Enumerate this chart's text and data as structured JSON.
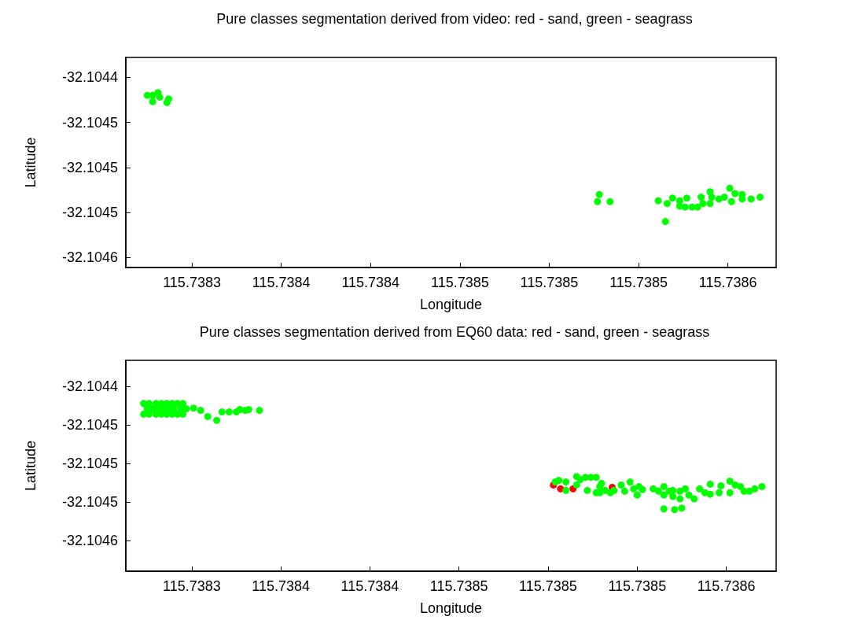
{
  "chart_data": [
    {
      "type": "scatter",
      "title": "Pure classes segmentation derived from video: red - sand, green - seagrass",
      "xlabel": "Longitude",
      "ylabel": "Latitude",
      "xlim": [
        115.738263,
        115.738627
      ],
      "ylim": [
        -32.104611,
        -32.104378
      ],
      "xticks": [
        {
          "value": 115.7383,
          "label": "115.7383"
        },
        {
          "value": 115.73835,
          "label": "115.7384"
        },
        {
          "value": 115.7384,
          "label": "115.7384"
        },
        {
          "value": 115.73845,
          "label": "115.7385"
        },
        {
          "value": 115.7385,
          "label": "115.7385"
        },
        {
          "value": 115.73855,
          "label": "115.7385"
        },
        {
          "value": 115.7386,
          "label": "115.7386"
        }
      ],
      "yticks": [
        {
          "value": -32.1044,
          "label": "-32.1044"
        },
        {
          "value": -32.10445,
          "label": "-32.1045"
        },
        {
          "value": -32.1045,
          "label": "-32.1045"
        },
        {
          "value": -32.10455,
          "label": "-32.1045"
        },
        {
          "value": -32.1046,
          "label": "-32.1046"
        }
      ],
      "grid": false,
      "marker": "circle",
      "series": [
        {
          "color": "#00ff00",
          "x": [
            115.738275,
            115.738278,
            115.738281,
            115.738287,
            115.738286,
            115.738278,
            115.738282,
            115.738528,
            115.738527,
            115.738534,
            115.738561,
            115.738566,
            115.738565,
            115.738569,
            115.738573,
            115.738573,
            115.738577,
            115.738576,
            115.73858,
            115.738583,
            115.738585,
            115.738586,
            115.73859,
            115.738591,
            115.73859,
            115.738595,
            115.738598,
            115.738601,
            115.738602,
            115.738604,
            115.738608,
            115.738608,
            115.738613,
            115.738618
          ],
          "values": [
            -32.10442,
            -32.10442,
            -32.104417,
            -32.104424,
            -32.104428,
            -32.104427,
            -32.104422,
            -32.10453,
            -32.104538,
            -32.104538,
            -32.104537,
            -32.10454,
            -32.10456,
            -32.104534,
            -32.104537,
            -32.104543,
            -32.104534,
            -32.104544,
            -32.104544,
            -32.104544,
            -32.104533,
            -32.10454,
            -32.104527,
            -32.104533,
            -32.10454,
            -32.104535,
            -32.104533,
            -32.104523,
            -32.104538,
            -32.104529,
            -32.10453,
            -32.104535,
            -32.104535,
            -32.104533
          ]
        }
      ]
    },
    {
      "type": "scatter",
      "title": "Pure classes segmentation derived from EQ60 data: red - sand, green - seagrass",
      "xlabel": "Longitude",
      "ylabel": "Latitude",
      "xlim": [
        115.738263,
        115.738628
      ],
      "ylim": [
        -32.10464,
        -32.104366
      ],
      "xticks": [
        {
          "value": 115.7383,
          "label": "115.7383"
        },
        {
          "value": 115.73835,
          "label": "115.7384"
        },
        {
          "value": 115.7384,
          "label": "115.7384"
        },
        {
          "value": 115.73845,
          "label": "115.7385"
        },
        {
          "value": 115.7385,
          "label": "115.7385"
        },
        {
          "value": 115.73855,
          "label": "115.7385"
        },
        {
          "value": 115.7386,
          "label": "115.7386"
        }
      ],
      "yticks": [
        {
          "value": -32.1044,
          "label": "-32.1044"
        },
        {
          "value": -32.10445,
          "label": "-32.1045"
        },
        {
          "value": -32.1045,
          "label": "-32.1045"
        },
        {
          "value": -32.10455,
          "label": "-32.1045"
        },
        {
          "value": -32.1046,
          "label": "-32.1046"
        }
      ],
      "grid": false,
      "marker": "circle",
      "series": [
        {
          "color": "#ff0000",
          "x": [
            115.738503,
            115.738507,
            115.738514,
            115.738536
          ],
          "values": [
            -32.104528,
            -32.104533,
            -32.104533,
            -32.104531
          ]
        },
        {
          "color": "#00ff00",
          "x": [
            115.738273,
            115.738276,
            115.73828,
            115.738283,
            115.738286,
            115.738289,
            115.738292,
            115.738295,
            115.738275,
            115.738278,
            115.738281,
            115.738284,
            115.738287,
            115.73829,
            115.738294,
            115.738297,
            115.738273,
            115.738276,
            115.73828,
            115.738283,
            115.738286,
            115.738289,
            115.738292,
            115.738295,
            115.738301,
            115.738305,
            115.738309,
            115.738314,
            115.738317,
            115.738321,
            115.738325,
            115.738327,
            115.73833,
            115.738332,
            115.738338,
            115.738504,
            115.738506,
            115.73851,
            115.73851,
            115.738516,
            115.738516,
            115.738518,
            115.738521,
            115.738522,
            115.738524,
            115.738527,
            115.738527,
            115.738529,
            115.73853,
            115.738529,
            115.738532,
            115.738535,
            115.738537,
            115.738541,
            115.738543,
            115.738546,
            115.738548,
            115.738551,
            115.73855,
            115.738553,
            115.738559,
            115.738562,
            115.738565,
            115.738565,
            115.738568,
            115.73857,
            115.73857,
            115.738574,
            115.738574,
            115.738577,
            115.738579,
            115.738582,
            115.738585,
            115.738588,
            115.738591,
            115.738591,
            115.738596,
            115.738597,
            115.738602,
            115.738602,
            115.738605,
            115.738608,
            115.73861,
            115.738613,
            115.738616,
            115.73862,
            115.738565,
            115.738571,
            115.738575
          ],
          "values": [
            -32.104422,
            -32.104422,
            -32.104422,
            -32.104422,
            -32.104422,
            -32.104422,
            -32.104422,
            -32.104422,
            -32.104429,
            -32.104429,
            -32.104429,
            -32.104429,
            -32.104429,
            -32.104429,
            -32.104429,
            -32.104429,
            -32.104436,
            -32.104436,
            -32.104436,
            -32.104436,
            -32.104436,
            -32.104436,
            -32.104436,
            -32.104436,
            -32.104428,
            -32.104431,
            -32.104439,
            -32.104444,
            -32.104433,
            -32.104433,
            -32.104433,
            -32.10443,
            -32.104431,
            -32.10443,
            -32.104431,
            -32.104524,
            -32.104522,
            -32.104524,
            -32.104535,
            -32.104517,
            -32.104528,
            -32.104521,
            -32.104518,
            -32.104535,
            -32.104518,
            -32.104518,
            -32.104538,
            -32.104538,
            -32.104526,
            -32.10453,
            -32.104535,
            -32.104538,
            -32.104535,
            -32.104528,
            -32.104536,
            -32.104524,
            -32.104533,
            -32.10453,
            -32.104541,
            -32.104534,
            -32.104533,
            -32.104536,
            -32.10453,
            -32.104541,
            -32.104536,
            -32.104535,
            -32.104543,
            -32.104536,
            -32.104546,
            -32.104533,
            -32.104541,
            -32.104546,
            -32.104533,
            -32.104538,
            -32.104527,
            -32.10454,
            -32.104538,
            -32.104529,
            -32.104523,
            -32.104538,
            -32.104528,
            -32.10453,
            -32.104536,
            -32.104536,
            -32.104533,
            -32.10453,
            -32.104559,
            -32.10456,
            -32.104558
          ]
        }
      ]
    }
  ]
}
